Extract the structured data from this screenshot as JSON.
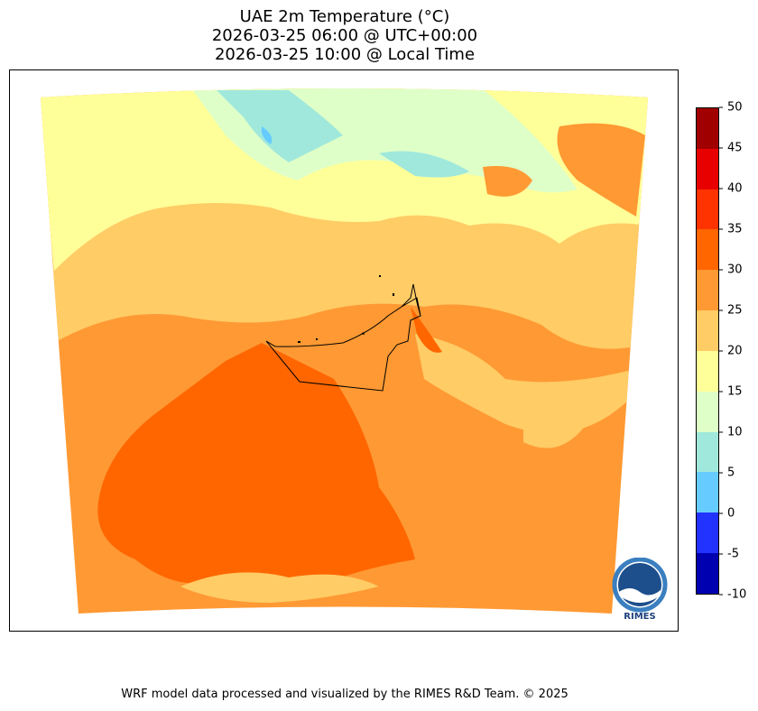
{
  "title_lines": [
    "UAE 2m Temperature (°C)",
    "2026-03-25 06:00 @ UTC+00:00",
    "2026-03-25 10:00 @ Local Time"
  ],
  "colorbar": {
    "ticks": [
      "50",
      "45",
      "40",
      "35",
      "30",
      "25",
      "20",
      "15",
      "10",
      "5",
      "0",
      "-5",
      "-10"
    ],
    "colors": [
      "#a00000",
      "#e80000",
      "#ff3300",
      "#ff6600",
      "#ff9933",
      "#ffcc66",
      "#ffff99",
      "#dfffc8",
      "#a0e8dc",
      "#66ccff",
      "#2233ff",
      "#0000b0"
    ]
  },
  "logo": {
    "text": "RIMES",
    "ring_text": "Regional Integrated Multi-Hazard Early Warning System"
  },
  "footer": "WRF model data processed and visualized by the RIMES R&D Team. © 2025"
}
